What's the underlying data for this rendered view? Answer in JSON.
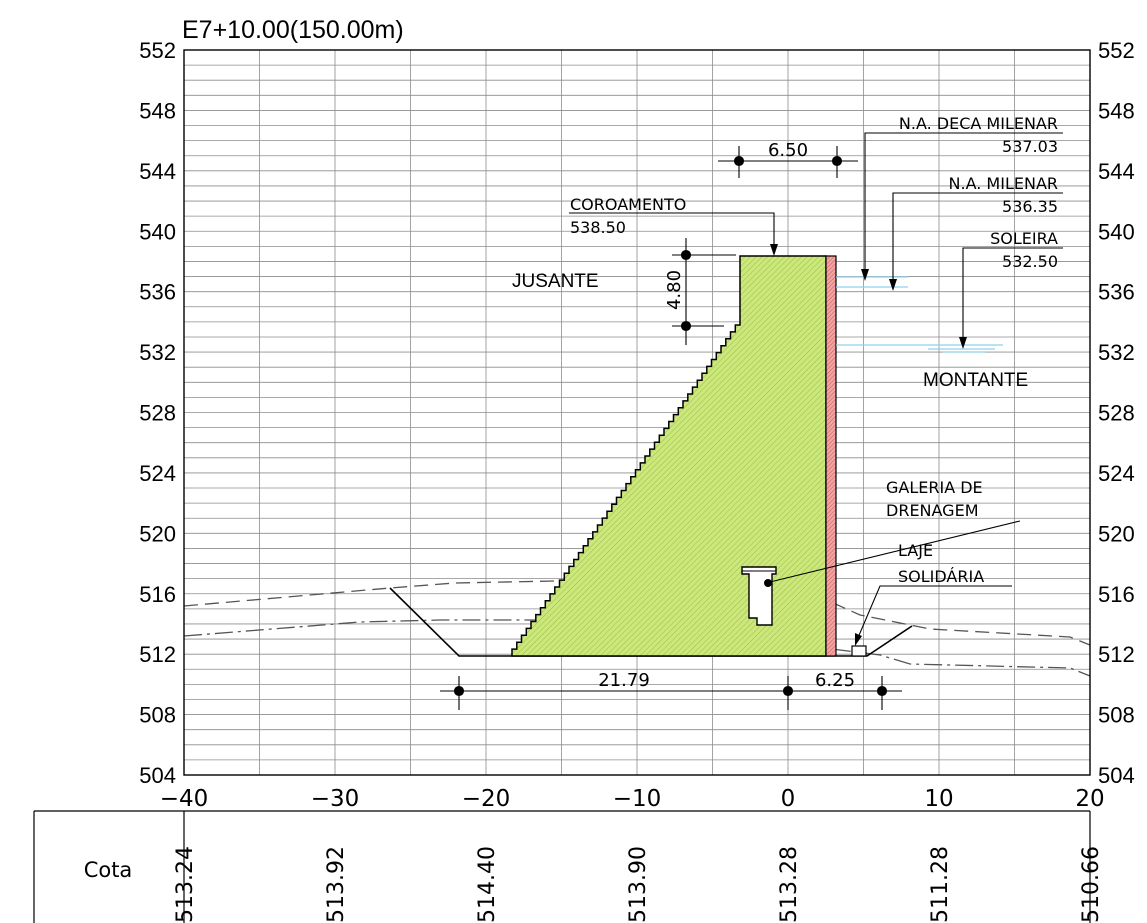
{
  "title": "E7+10.00(150.00m)",
  "axes": {
    "x": {
      "min": -40,
      "max": 20,
      "major_ticks": [
        -40,
        -30,
        -20,
        -10,
        0,
        10,
        20
      ],
      "tick_labels": [
        "−40",
        "−30",
        "−20",
        "−10",
        "0",
        "10",
        "20"
      ]
    },
    "y": {
      "min": 504,
      "max": 552,
      "major_ticks": [
        504,
        508,
        512,
        516,
        520,
        524,
        528,
        532,
        536,
        540,
        544,
        548,
        552
      ],
      "tick_labels": [
        "504",
        "508",
        "512",
        "516",
        "520",
        "524",
        "528",
        "532",
        "536",
        "540",
        "544",
        "548",
        "552"
      ]
    },
    "grid": true
  },
  "labels": {
    "jusante": "JUSANTE",
    "montante": "MONTANTE",
    "coroamento_name": "COROAMENTO",
    "coroamento_value": "538.50",
    "na_deca_name": "N.A. DECA MILENAR",
    "na_deca_value": "537.03",
    "na_milenar_name": "N.A. MILENAR",
    "na_milenar_value": "536.35",
    "soleira_name": "SOLEIRA",
    "soleira_value": "532.50",
    "galeria_line1": "GALERIA DE",
    "galeria_line2": "DRENAGEM",
    "laje_line1": "LAJE",
    "laje_line2": "SOLIDÁRIA"
  },
  "dimensions": {
    "crest_width": "6.50",
    "crest_height": "4.80",
    "base_downstream": "21.79",
    "base_upstream": "6.25"
  },
  "cota_table": {
    "header": "Cota",
    "values": [
      "513.24",
      "513.92",
      "514.40",
      "513.90",
      "513.28",
      "511.28",
      "510.66"
    ]
  },
  "colors": {
    "dam_fill": "#cde87a",
    "upstream_face": "#f08a8a",
    "water_line": "#8fd0ea",
    "grid": "#8c8c8c"
  }
}
